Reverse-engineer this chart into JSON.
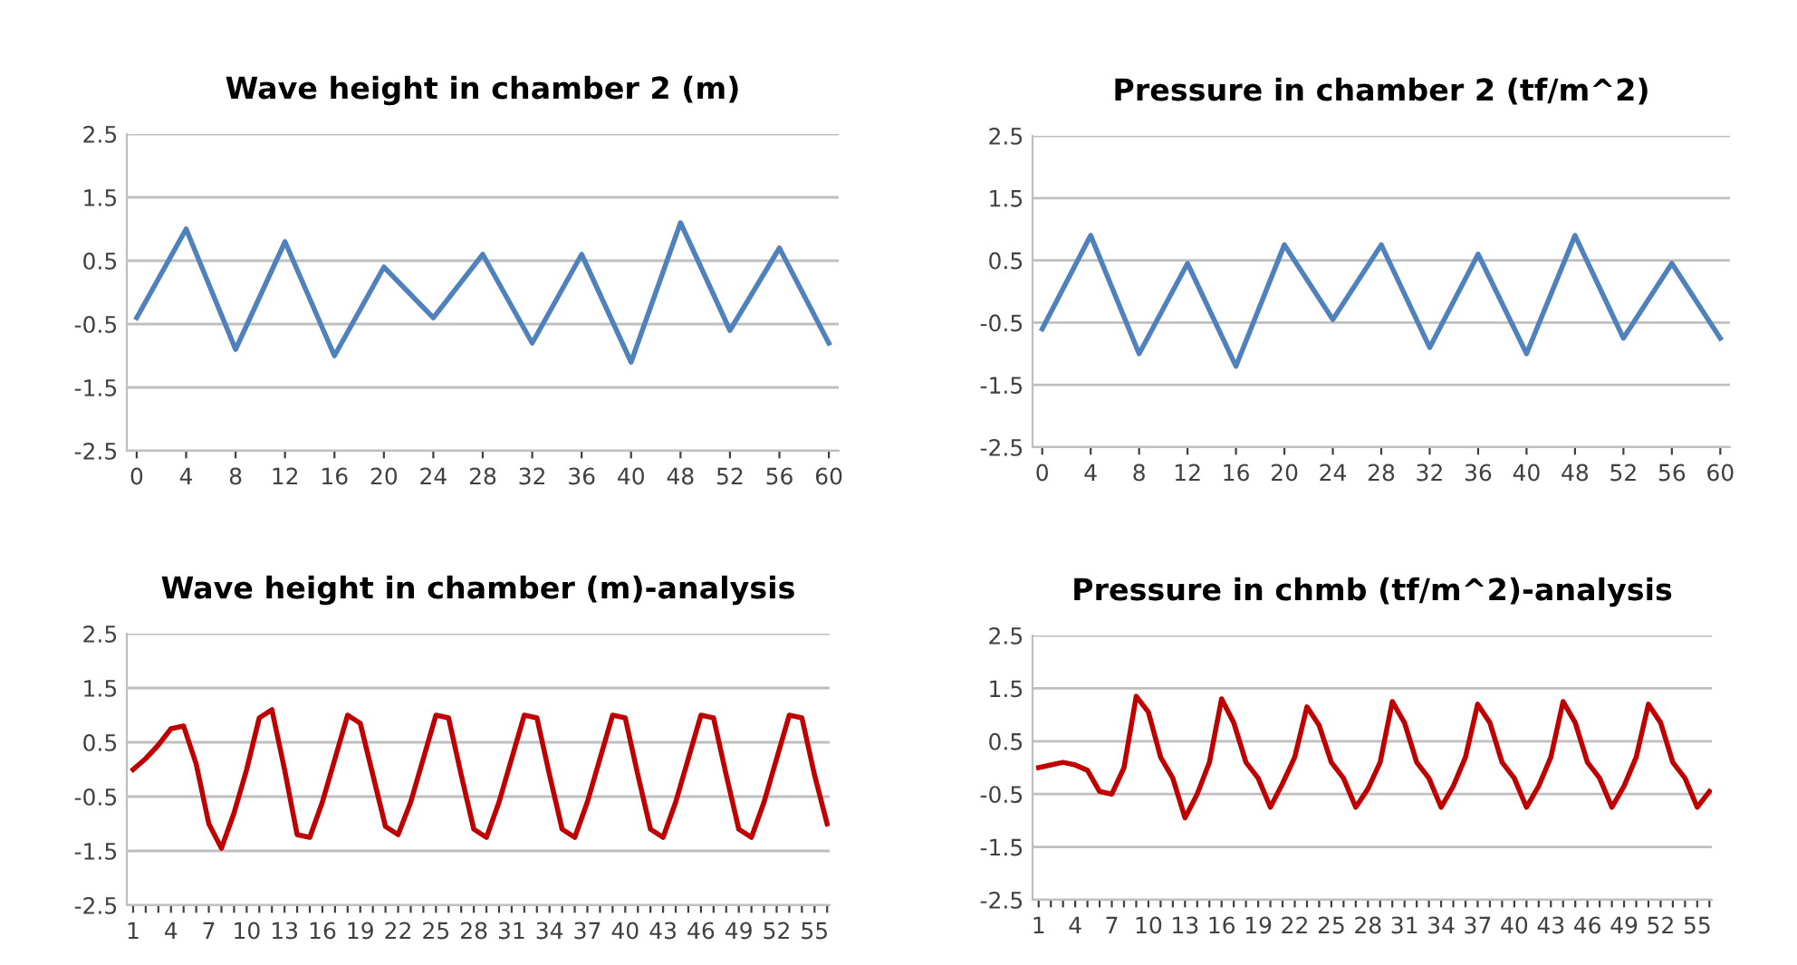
{
  "chart_data": [
    {
      "type": "line",
      "title": "Wave height in chamber 2 (m)",
      "categories": [
        "0",
        "4",
        "8",
        "12",
        "16",
        "20",
        "24",
        "28",
        "32",
        "36",
        "40",
        "48",
        "52",
        "56",
        "60"
      ],
      "series": [
        {
          "color": "#4f81bd",
          "values": [
            -0.4,
            1.0,
            -0.9,
            0.8,
            -1.0,
            0.4,
            -0.4,
            0.6,
            -0.8,
            0.6,
            -1.1,
            1.1,
            -0.6,
            0.7,
            -0.8
          ]
        }
      ],
      "ylim": [
        -2.5,
        2.5
      ],
      "yticks": [
        -2.5,
        -1.5,
        -0.5,
        0.5,
        1.5,
        2.5
      ],
      "grid": "y",
      "legend": false,
      "marker": "none",
      "line_style": "solid"
    },
    {
      "type": "line",
      "title": "Pressure in chamber 2 (tf/m^2)",
      "categories": [
        "0",
        "4",
        "8",
        "12",
        "16",
        "20",
        "24",
        "28",
        "32",
        "36",
        "40",
        "48",
        "52",
        "56",
        "60"
      ],
      "series": [
        {
          "color": "#4f81bd",
          "values": [
            -0.6,
            0.9,
            -1.0,
            0.45,
            -1.2,
            0.75,
            -0.45,
            0.75,
            -0.9,
            0.6,
            -1.0,
            0.9,
            -0.75,
            0.45,
            -0.75
          ]
        }
      ],
      "ylim": [
        -2.5,
        2.5
      ],
      "yticks": [
        -2.5,
        -1.5,
        -0.5,
        0.5,
        1.5,
        2.5
      ],
      "grid": "y",
      "legend": false,
      "marker": "none",
      "line_style": "solid"
    },
    {
      "type": "line",
      "title": "Wave height in chamber (m)-analysis",
      "categories": [
        "1",
        null,
        null,
        "4",
        null,
        null,
        "7",
        null,
        null,
        "10",
        null,
        null,
        "13",
        null,
        null,
        "16",
        null,
        null,
        "19",
        null,
        null,
        "22",
        null,
        null,
        "25",
        null,
        null,
        "28",
        null,
        null,
        "31",
        null,
        null,
        "34",
        null,
        null,
        "37",
        null,
        null,
        "40",
        null,
        null,
        "43",
        null,
        null,
        "46",
        null,
        null,
        "49",
        null,
        null,
        "52",
        null,
        null,
        "55",
        null
      ],
      "series": [
        {
          "color": "#c00000",
          "values": [
            0,
            0.2,
            0.45,
            0.75,
            0.8,
            0.1,
            -1.0,
            -1.45,
            -0.8,
            0.0,
            0.95,
            1.1,
            0.0,
            -1.2,
            -1.25,
            -0.6,
            0.2,
            1.0,
            0.85,
            -0.1,
            -1.05,
            -1.2,
            -0.6,
            0.2,
            1.0,
            0.95,
            -0.1,
            -1.1,
            -1.25,
            -0.6,
            0.2,
            1.0,
            0.95,
            -0.1,
            -1.1,
            -1.25,
            -0.6,
            0.2,
            1.0,
            0.95,
            -0.1,
            -1.1,
            -1.25,
            -0.6,
            0.2,
            1.0,
            0.95,
            -0.1,
            -1.1,
            -1.25,
            -0.6,
            0.2,
            1.0,
            0.95,
            -0.1,
            -1.0
          ]
        }
      ],
      "ylim": [
        -2.5,
        2.5
      ],
      "yticks": [
        -2.5,
        -1.5,
        -0.5,
        0.5,
        1.5,
        2.5
      ],
      "grid": "y",
      "legend": false,
      "marker": "none",
      "line_style": "solid"
    },
    {
      "type": "line",
      "title": "Pressure in chmb (tf/m^2)-analysis",
      "categories": [
        "1",
        null,
        null,
        "4",
        null,
        null,
        "7",
        null,
        null,
        "10",
        null,
        null,
        "13",
        null,
        null,
        "16",
        null,
        null,
        "19",
        null,
        null,
        "22",
        null,
        null,
        "25",
        null,
        null,
        "28",
        null,
        null,
        "31",
        null,
        null,
        "34",
        null,
        null,
        "37",
        null,
        null,
        "40",
        null,
        null,
        "43",
        null,
        null,
        "46",
        null,
        null,
        "49",
        null,
        null,
        "52",
        null,
        null,
        "55",
        null
      ],
      "series": [
        {
          "color": "#c00000",
          "values": [
            0,
            0.05,
            0.1,
            0.05,
            -0.05,
            -0.45,
            -0.5,
            0.0,
            1.35,
            1.05,
            0.2,
            -0.2,
            -0.95,
            -0.5,
            0.1,
            1.3,
            0.85,
            0.1,
            -0.2,
            -0.75,
            -0.3,
            0.2,
            1.15,
            0.8,
            0.1,
            -0.2,
            -0.75,
            -0.4,
            0.1,
            1.25,
            0.85,
            0.1,
            -0.2,
            -0.75,
            -0.35,
            0.2,
            1.2,
            0.85,
            0.1,
            -0.2,
            -0.75,
            -0.35,
            0.2,
            1.25,
            0.85,
            0.1,
            -0.2,
            -0.75,
            -0.35,
            0.2,
            1.2,
            0.85,
            0.1,
            -0.2,
            -0.75,
            -0.45
          ]
        }
      ],
      "ylim": [
        -2.5,
        2.5
      ],
      "yticks": [
        -2.5,
        -1.5,
        -0.5,
        0.5,
        1.5,
        2.5
      ],
      "grid": "y",
      "legend": false,
      "marker": "none",
      "line_style": "solid"
    }
  ]
}
